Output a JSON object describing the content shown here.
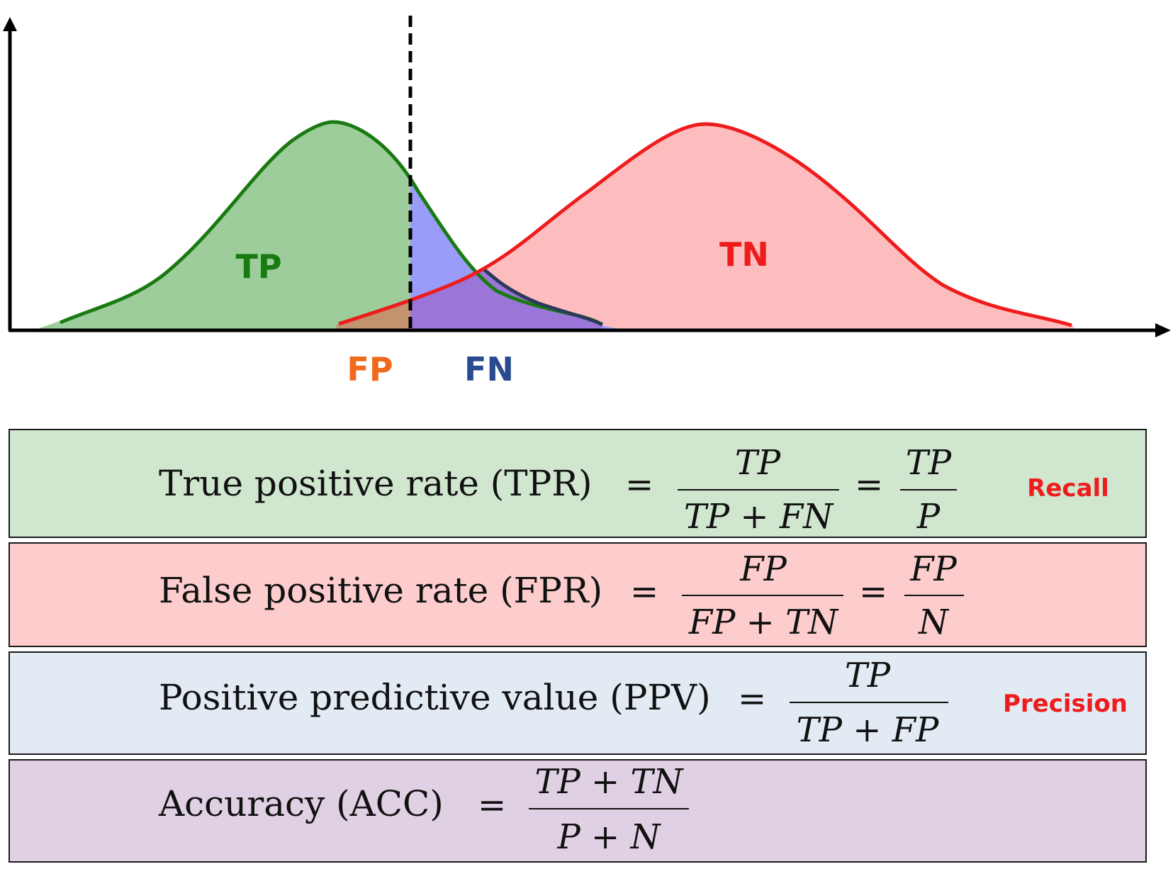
{
  "diagram": {
    "labels": {
      "tp": "TP",
      "tn": "TN",
      "fp": "FP",
      "fn": "FN"
    },
    "colors": {
      "positive_curve": "#1a7a12",
      "positive_fill": "#9ccd9a",
      "negative_curve": "#ee1c1c",
      "negative_fill": "#fdbdbe",
      "fn_fill": "#9a9cfa",
      "overlap_fill": "#9b76d8",
      "fp_fill": "#c2936e",
      "fp_label": "#f06a1c",
      "fn_label": "#284a8e",
      "axis": "#000000"
    }
  },
  "formulas": [
    {
      "name": "True positive rate (TPR)",
      "eq": "=",
      "frac1_num": "TP",
      "frac1_den": "TP + FN",
      "eq2": "=",
      "frac2_num": "TP",
      "frac2_den": "P",
      "tag": "Recall",
      "bg": "#d0e6cf"
    },
    {
      "name": "False positive rate (FPR)",
      "eq": "=",
      "frac1_num": "FP",
      "frac1_den": "FP + TN",
      "eq2": "=",
      "frac2_num": "FP",
      "frac2_den": "N",
      "tag": "",
      "bg": "#fdcdcd"
    },
    {
      "name": "Positive predictive value (PPV)",
      "eq": "=",
      "frac1_num": "TP",
      "frac1_den": "TP + FP",
      "tag": "Precision",
      "bg": "#e2eaf3"
    },
    {
      "name": "Accuracy (ACC)",
      "eq": "=",
      "frac1_num": "TP + TN",
      "frac1_den": "P + N",
      "tag": "",
      "bg": "#e0d0e3"
    }
  ],
  "tag_color": "#ee1c1c"
}
